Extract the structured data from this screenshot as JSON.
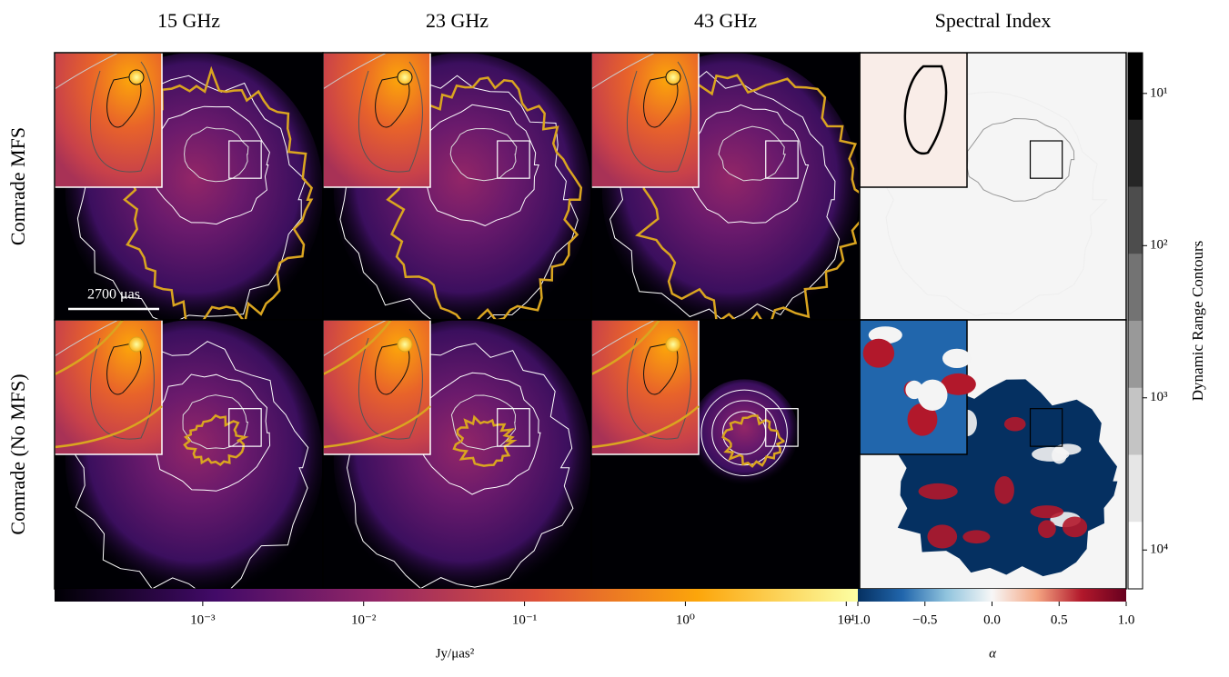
{
  "columns": [
    "15 GHz",
    "23 GHz",
    "43 GHz",
    "Spectral Index"
  ],
  "rows": [
    "Comrade MFS",
    "Comrade (No MFS)"
  ],
  "scale_bar": "2700 μas",
  "intensity_colorbar": {
    "label": "Jy/μas²",
    "log": true,
    "lim": [
      0.00012,
      11.8
    ],
    "ticks": [
      {
        "value": 0.001,
        "label": "10⁻³"
      },
      {
        "value": 0.01,
        "label": "10⁻²"
      },
      {
        "value": 0.1,
        "label": "10⁻¹"
      },
      {
        "value": 1,
        "label": "10⁰"
      },
      {
        "value": 10,
        "label": "10¹"
      }
    ],
    "colors": [
      "#000004",
      "#420a68",
      "#932667",
      "#dd513a",
      "#fca50a",
      "#fcffa4"
    ]
  },
  "alpha_colorbar": {
    "label": "α",
    "lim": [
      -1,
      1
    ],
    "ticks": [
      {
        "value": -1,
        "label": "−1.0"
      },
      {
        "value": -0.5,
        "label": "−0.5"
      },
      {
        "value": 0,
        "label": "0.0"
      },
      {
        "value": 0.5,
        "label": "0.5"
      },
      {
        "value": 1,
        "label": "1.0"
      }
    ],
    "colors": [
      "#053061",
      "#2166ac",
      "#92c5de",
      "#f7f7f7",
      "#f4a582",
      "#b2182b",
      "#67001f"
    ]
  },
  "dynamic_range_colorbar": {
    "label": "Dynamic Range Contours",
    "log": true,
    "lim": [
      5.4,
      18000
    ],
    "ticks": [
      {
        "value": 10,
        "label": "10¹"
      },
      {
        "value": 100,
        "label": "10²"
      },
      {
        "value": 1000,
        "label": "10³"
      },
      {
        "value": 10000,
        "label": "10⁴"
      }
    ],
    "colors": [
      "#000000",
      "#262626",
      "#4d4d4d",
      "#737373",
      "#999999",
      "#c4c4c4",
      "#e6e6e6",
      "#ffffff"
    ]
  }
}
